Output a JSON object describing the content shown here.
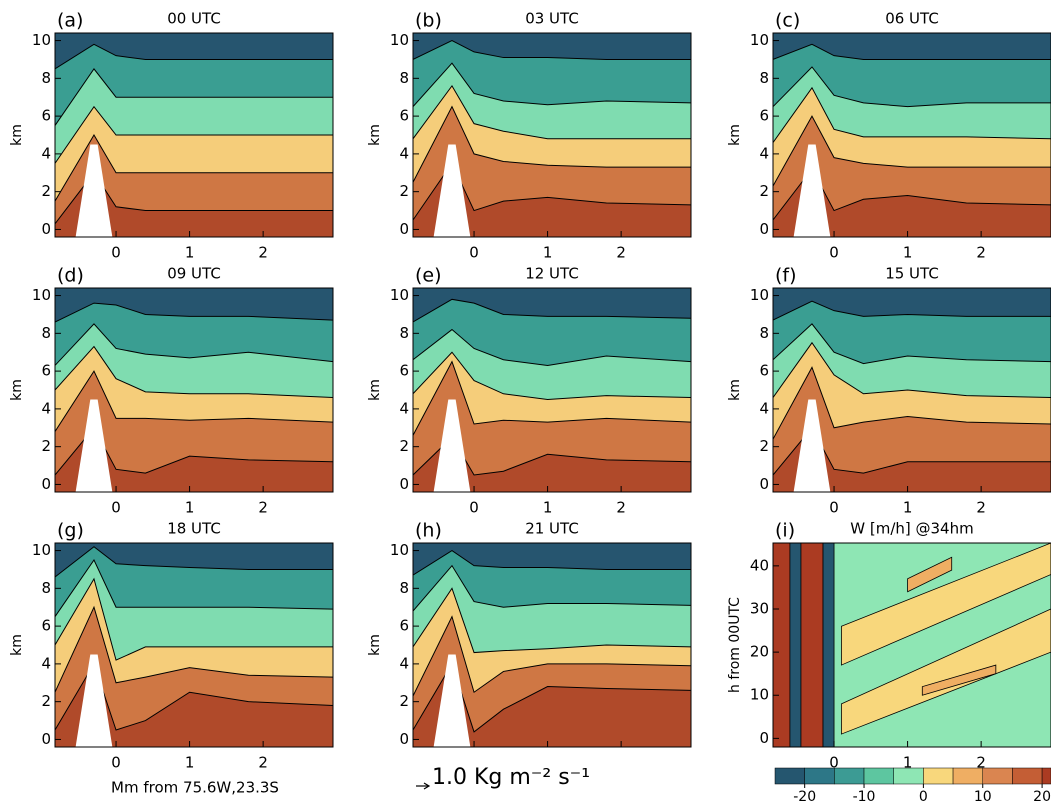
{
  "figure": {
    "xlabel": "Mm from 75.6W,23.3S",
    "vector_key": "1.0 Kg m⁻² s⁻¹",
    "layer_x": [
      -0.83,
      -0.3,
      0,
      0.4,
      1,
      1.8,
      2.95
    ],
    "terrain": {
      "x": [
        -0.55,
        -0.35,
        -0.25,
        -0.05
      ],
      "y": [
        -0.4,
        4.5,
        4.5,
        -0.4
      ]
    },
    "layer_colors": [
      "#b04a2a",
      "#cf7744",
      "#f5cd7a",
      "#7fdcb0",
      "#3a9e92",
      "#26556f"
    ],
    "colorbar": {
      "levels": [
        -25,
        -20,
        -15,
        -10,
        -5,
        0,
        5,
        10,
        15,
        20,
        25
      ],
      "colors": [
        "#25566f",
        "#2d7787",
        "#3c9b94",
        "#5dc6a0",
        "#8ee6b4",
        "#f8d77c",
        "#efae63",
        "#da8550",
        "#c45e35",
        "#ab3b22"
      ],
      "xlim": [
        -25,
        21.5
      ],
      "ticks": [
        -20,
        -10,
        0,
        10,
        20
      ]
    }
  },
  "chart_data": [
    {
      "type": "contour",
      "label": "(a)",
      "title": "00 UTC",
      "ylabel": "km",
      "xlim": [
        -0.83,
        2.95
      ],
      "ylim": [
        -0.4,
        10.4
      ],
      "xticks": [
        0,
        1,
        2
      ],
      "yticks": [
        0,
        2,
        4,
        6,
        8,
        10
      ],
      "layers": [
        [
          0.3,
          3,
          1.2,
          1,
          1,
          1,
          1
        ],
        [
          1.5,
          5,
          3,
          3,
          3,
          3,
          3
        ],
        [
          3.5,
          6.5,
          5,
          5,
          5,
          5,
          5
        ],
        [
          5.5,
          8.5,
          7,
          7,
          7,
          7,
          7
        ],
        [
          8.5,
          9.8,
          9.2,
          9,
          9,
          9,
          9
        ]
      ]
    },
    {
      "type": "contour",
      "label": "(b)",
      "title": "03 UTC",
      "ylabel": "km",
      "xlim": [
        -0.83,
        2.95
      ],
      "ylim": [
        -0.4,
        10.4
      ],
      "xticks": [
        0,
        1,
        2
      ],
      "yticks": [
        0,
        2,
        4,
        6,
        8,
        10
      ],
      "layers": [
        [
          0.5,
          3.5,
          1,
          1.5,
          1.7,
          1.4,
          1.3
        ],
        [
          2.5,
          6.5,
          4,
          3.6,
          3.4,
          3.3,
          3.3
        ],
        [
          4.8,
          7.6,
          5.6,
          5.2,
          4.8,
          4.8,
          4.8
        ],
        [
          6.5,
          8.8,
          7.2,
          6.8,
          6.6,
          6.8,
          6.7
        ],
        [
          9,
          10,
          9.4,
          9.1,
          9.1,
          9,
          9
        ]
      ]
    },
    {
      "type": "contour",
      "label": "(c)",
      "title": "06 UTC",
      "ylabel": "km",
      "xlim": [
        -0.83,
        2.95
      ],
      "ylim": [
        -0.4,
        10.4
      ],
      "xticks": [
        0,
        1,
        2
      ],
      "yticks": [
        0,
        2,
        4,
        6,
        8,
        10
      ],
      "layers": [
        [
          0.5,
          3.2,
          1,
          1.6,
          1.8,
          1.4,
          1.3
        ],
        [
          2.3,
          6,
          3.8,
          3.5,
          3.3,
          3.3,
          3.3
        ],
        [
          4.6,
          7.5,
          5.3,
          4.9,
          4.9,
          4.9,
          4.8
        ],
        [
          6.5,
          8.6,
          7.1,
          6.7,
          6.5,
          6.7,
          6.7
        ],
        [
          9,
          9.8,
          9.2,
          9,
          9,
          9,
          9
        ]
      ]
    },
    {
      "type": "contour",
      "label": "(d)",
      "title": "09 UTC",
      "ylabel": "km",
      "xlim": [
        -0.83,
        2.95
      ],
      "ylim": [
        -0.4,
        10.4
      ],
      "xticks": [
        0,
        1,
        2
      ],
      "yticks": [
        0,
        2,
        4,
        6,
        8,
        10
      ],
      "layers": [
        [
          0.5,
          3,
          0.8,
          0.6,
          1.5,
          1.3,
          1.2
        ],
        [
          2.8,
          6,
          3.5,
          3.5,
          3.4,
          3.5,
          3.3
        ],
        [
          5,
          7.3,
          5.6,
          4.9,
          4.8,
          4.8,
          4.6
        ],
        [
          6.3,
          8.5,
          7.2,
          6.9,
          6.7,
          7,
          6.5
        ],
        [
          8.6,
          9.6,
          9.5,
          9,
          8.9,
          8.9,
          8.7
        ]
      ]
    },
    {
      "type": "contour",
      "label": "(e)",
      "title": "12 UTC",
      "ylabel": "km",
      "xlim": [
        -0.83,
        2.95
      ],
      "ylim": [
        -0.4,
        10.4
      ],
      "xticks": [
        0,
        1,
        2
      ],
      "yticks": [
        0,
        2,
        4,
        6,
        8,
        10
      ],
      "layers": [
        [
          0.5,
          2.5,
          0.5,
          0.7,
          1.6,
          1.3,
          1.2
        ],
        [
          2.6,
          6.5,
          3.2,
          3.4,
          3.3,
          3.5,
          3.3
        ],
        [
          4.8,
          7,
          5.5,
          4.8,
          4.5,
          4.7,
          4.6
        ],
        [
          6.6,
          8.2,
          7.2,
          6.6,
          6.3,
          6.8,
          6.5
        ],
        [
          8.6,
          9.8,
          9.6,
          9,
          8.9,
          8.9,
          8.8
        ]
      ]
    },
    {
      "type": "contour",
      "label": "(f)",
      "title": "15 UTC",
      "ylabel": "km",
      "xlim": [
        -0.83,
        2.95
      ],
      "ylim": [
        -0.4,
        10.4
      ],
      "xticks": [
        0,
        1,
        2
      ],
      "yticks": [
        0,
        2,
        4,
        6,
        8,
        10
      ],
      "layers": [
        [
          0.5,
          3,
          0.8,
          0.6,
          1.2,
          1.2,
          1.2
        ],
        [
          2.4,
          6.2,
          3,
          3.3,
          3.6,
          3.3,
          3.2
        ],
        [
          4.6,
          7.5,
          5.8,
          4.8,
          5,
          4.7,
          4.6
        ],
        [
          6.6,
          8.5,
          7,
          6.4,
          6.8,
          6.6,
          6.5
        ],
        [
          8.7,
          9.7,
          9.2,
          8.9,
          9,
          8.9,
          8.9
        ]
      ]
    },
    {
      "type": "contour",
      "label": "(g)",
      "title": "18 UTC",
      "ylabel": "km",
      "xlim": [
        -0.83,
        2.95
      ],
      "ylim": [
        -0.4,
        10.4
      ],
      "xticks": [
        0,
        1,
        2
      ],
      "yticks": [
        0,
        2,
        4,
        6,
        8,
        10
      ],
      "layers": [
        [
          0.5,
          4,
          0.5,
          1,
          2.5,
          2,
          1.8
        ],
        [
          2.5,
          7,
          3,
          3.3,
          3.8,
          3.4,
          3.3
        ],
        [
          5,
          8.5,
          4.2,
          4.9,
          4.9,
          4.9,
          4.9
        ],
        [
          6.5,
          9.5,
          7,
          7,
          7,
          7,
          6.9
        ],
        [
          8.6,
          10.2,
          9.3,
          9.2,
          9.1,
          9,
          9
        ]
      ]
    },
    {
      "type": "contour",
      "label": "(h)",
      "title": "21 UTC",
      "ylabel": "km",
      "xlim": [
        -0.83,
        2.95
      ],
      "ylim": [
        -0.4,
        10.4
      ],
      "xticks": [
        0,
        1,
        2
      ],
      "yticks": [
        0,
        2,
        4,
        6,
        8,
        10
      ],
      "show_xticklabels": false,
      "layers": [
        [
          0.5,
          4,
          0.4,
          1.6,
          2.8,
          2.7,
          2.6
        ],
        [
          2.3,
          6.5,
          2.5,
          3.6,
          4,
          4,
          3.9
        ],
        [
          4.9,
          8,
          4.6,
          4.7,
          4.8,
          5,
          4.9
        ],
        [
          6.8,
          9.2,
          7.3,
          7,
          7.2,
          7.2,
          7.1
        ],
        [
          8.7,
          10,
          9.2,
          9.1,
          9.1,
          9,
          9
        ]
      ]
    },
    {
      "type": "hovmoller",
      "label": "(i)",
      "title": "W [m/h] @34hm",
      "ylabel": "h from 00UTC",
      "xlim": [
        -0.83,
        2.95
      ],
      "ylim": [
        -2,
        45.3
      ],
      "xticks": [
        0,
        1,
        2
      ],
      "yticks": [
        0,
        10,
        20,
        30,
        40
      ],
      "patches": [
        {
          "value": -2,
          "x": [
            -0.83,
            2.95,
            2.95,
            -0.83
          ],
          "y": [
            -2,
            -2,
            45.3,
            45.3
          ]
        },
        {
          "value": 2,
          "x": [
            0.1,
            2.95,
            2.95,
            0.1
          ],
          "y": [
            1,
            20,
            30,
            8
          ]
        },
        {
          "value": 2,
          "x": [
            0.1,
            2.95,
            2.95,
            0.1
          ],
          "y": [
            17,
            38,
            45.3,
            26
          ]
        },
        {
          "value": 7,
          "x": [
            1,
            1.6,
            1.6,
            1
          ],
          "y": [
            34,
            39,
            42,
            37
          ]
        },
        {
          "value": 7,
          "x": [
            1.2,
            2.2,
            2.2,
            1.2
          ],
          "y": [
            10,
            15,
            17,
            12
          ]
        },
        {
          "value": 22,
          "x": [
            -0.83,
            -0.6,
            -0.6,
            -0.83
          ],
          "y": [
            -2,
            -2,
            45.3,
            45.3
          ]
        },
        {
          "value": -22,
          "x": [
            -0.6,
            -0.45,
            -0.45,
            -0.6
          ],
          "y": [
            -2,
            -2,
            45.3,
            45.3
          ]
        },
        {
          "value": 22,
          "x": [
            -0.45,
            -0.15,
            -0.15,
            -0.45
          ],
          "y": [
            -2,
            -2,
            45.3,
            45.3
          ]
        },
        {
          "value": -22,
          "x": [
            -0.15,
            0,
            0,
            -0.15
          ],
          "y": [
            -2,
            -2,
            45.3,
            45.3
          ]
        }
      ]
    }
  ]
}
